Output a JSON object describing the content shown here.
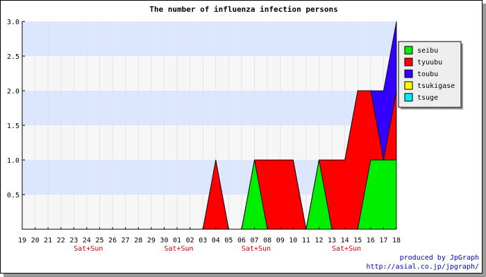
{
  "chart_data": {
    "type": "area",
    "title": "The number of influenza infection persons",
    "xlabel": "",
    "ylabel": "",
    "categories": [
      "19",
      "20",
      "21",
      "22",
      "23",
      "24",
      "25",
      "26",
      "27",
      "28",
      "29",
      "30",
      "01",
      "02",
      "03",
      "04",
      "05",
      "06",
      "07",
      "08",
      "09",
      "10",
      "11",
      "12",
      "13",
      "14",
      "15",
      "16",
      "17",
      "18"
    ],
    "weekend_marks": [
      {
        "category": "23",
        "label": "Sat+Sun"
      },
      {
        "category": "30",
        "label": "Sat+Sun"
      },
      {
        "category": "06",
        "label": "Sat+Sun"
      },
      {
        "category": "13",
        "label": "Sat+Sun"
      }
    ],
    "ylim": [
      0,
      3.0
    ],
    "yticks": [
      "0.5",
      "1.0",
      "1.5",
      "2.0",
      "2.5",
      "3.0"
    ],
    "grid": true,
    "legend_position": "right",
    "stacked": true,
    "series": [
      {
        "name": "seibu",
        "color": "#00ee00",
        "values": [
          0,
          0,
          0,
          0,
          0,
          0,
          0,
          0,
          0,
          0,
          0,
          0,
          0,
          0,
          0,
          0,
          0,
          0,
          1,
          0,
          0,
          0,
          0,
          1,
          0,
          0,
          0,
          1,
          1,
          1
        ]
      },
      {
        "name": "tyuubu",
        "color": "#ff0000",
        "values": [
          0,
          0,
          0,
          0,
          0,
          0,
          0,
          0,
          0,
          0,
          0,
          0,
          0,
          0,
          0,
          1,
          0,
          0,
          0,
          1,
          1,
          1,
          0,
          0,
          1,
          1,
          2,
          1,
          0,
          1
        ]
      },
      {
        "name": "toubu",
        "color": "#3300ff",
        "values": [
          0,
          0,
          0,
          0,
          0,
          0,
          0,
          0,
          0,
          0,
          0,
          0,
          0,
          0,
          0,
          0,
          0,
          0,
          0,
          0,
          0,
          0,
          0,
          0,
          0,
          0,
          0,
          0,
          1,
          1
        ]
      },
      {
        "name": "tsukigase",
        "color": "#ffff00",
        "values": [
          0,
          0,
          0,
          0,
          0,
          0,
          0,
          0,
          0,
          0,
          0,
          0,
          0,
          0,
          0,
          0,
          0,
          0,
          0,
          0,
          0,
          0,
          0,
          0,
          0,
          0,
          0,
          0,
          0,
          0
        ]
      },
      {
        "name": "tsuge",
        "color": "#00eeee",
        "values": [
          0,
          0,
          0,
          0,
          0,
          0,
          0,
          0,
          0,
          0,
          0,
          0,
          0,
          0,
          0,
          0,
          0,
          0,
          0,
          0,
          0,
          0,
          0,
          0,
          0,
          0,
          0,
          0,
          0,
          0
        ]
      }
    ],
    "colors": {
      "band_light": "#dde6ff",
      "band_gray": "#f6f6f6"
    }
  },
  "footer": {
    "credit_line1": "produced by JpGraph",
    "credit_line2": "http://asial.co.jp/jpgraph/"
  }
}
